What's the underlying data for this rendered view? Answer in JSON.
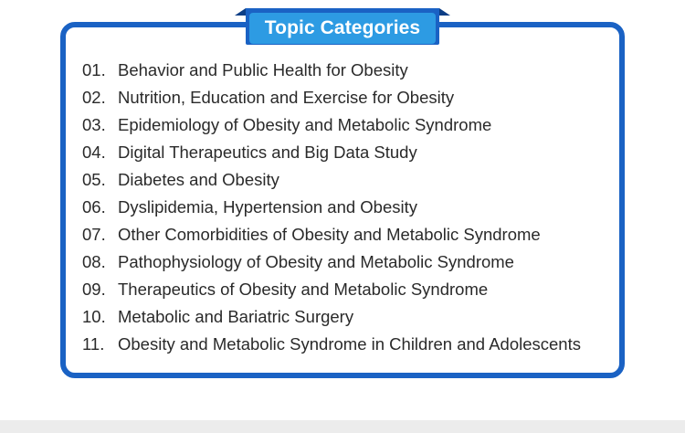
{
  "header": {
    "title": "Topic Categories"
  },
  "topics": [
    {
      "number": "01.",
      "label": "Behavior and Public Health for Obesity"
    },
    {
      "number": "02.",
      "label": "Nutrition, Education and Exercise for Obesity"
    },
    {
      "number": "03.",
      "label": "Epidemiology of Obesity and Metabolic Syndrome"
    },
    {
      "number": "04.",
      "label": "Digital Therapeutics and Big Data Study"
    },
    {
      "number": "05.",
      "label": "Diabetes and Obesity"
    },
    {
      "number": "06.",
      "label": "Dyslipidemia, Hypertension and Obesity"
    },
    {
      "number": "07.",
      "label": "Other Comorbidities of Obesity and Metabolic Syndrome"
    },
    {
      "number": "08.",
      "label": "Pathophysiology of Obesity and Metabolic Syndrome"
    },
    {
      "number": "09.",
      "label": "Therapeutics of Obesity and Metabolic Syndrome"
    },
    {
      "number": "10.",
      "label": "Metabolic and Bariatric Surgery"
    },
    {
      "number": "11.",
      "label": "Obesity and Metabolic Syndrome in Children and Adolescents"
    }
  ],
  "colors": {
    "frame_border": "#1a62c4",
    "tab_fill": "#2d9be3",
    "tab_fold": "#0c3e86",
    "text": "#2a2a2a",
    "page_background": "#ffffff"
  }
}
